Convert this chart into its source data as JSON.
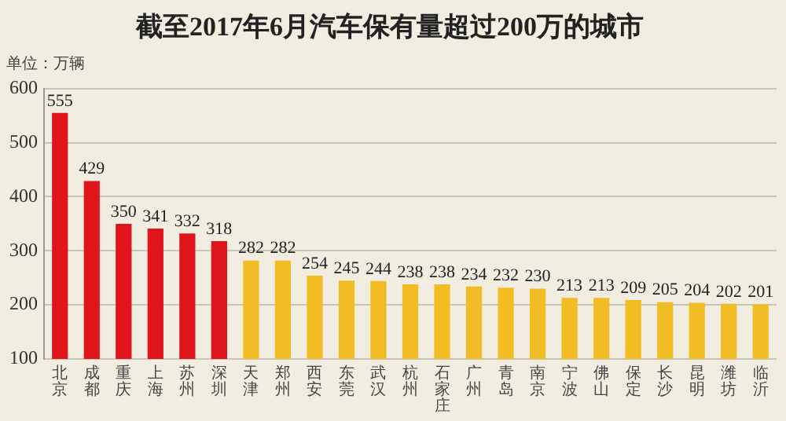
{
  "chart_data": {
    "type": "bar",
    "title": "截至2017年6月汽车保有量超过200万的城市",
    "annotations": [
      "单位：万辆"
    ],
    "categories": [
      "北京",
      "成都",
      "重庆",
      "上海",
      "苏州",
      "深圳",
      "天津",
      "郑州",
      "西安",
      "东莞",
      "武汉",
      "杭州",
      "石家庄",
      "广州",
      "青岛",
      "南京",
      "宁波",
      "佛山",
      "保定",
      "长沙",
      "昆明",
      "潍坊",
      "临沂"
    ],
    "values": [
      555,
      429,
      350,
      341,
      332,
      318,
      282,
      282,
      254,
      245,
      244,
      238,
      238,
      234,
      232,
      230,
      213,
      213,
      209,
      205,
      204,
      202,
      201
    ],
    "colors": [
      "#e0141b",
      "#e0141b",
      "#e0141b",
      "#e0141b",
      "#e0141b",
      "#e0141b",
      "#f2bd24",
      "#f2bd24",
      "#f2bd24",
      "#f2bd24",
      "#f2bd24",
      "#f2bd24",
      "#f2bd24",
      "#f2bd24",
      "#f2bd24",
      "#f2bd24",
      "#f2bd24",
      "#f2bd24",
      "#f2bd24",
      "#f2bd24",
      "#f2bd24",
      "#f2bd24",
      "#f2bd24"
    ],
    "ylim": [
      100,
      600
    ],
    "yticks": [
      100,
      200,
      300,
      400,
      500,
      600
    ],
    "grid": "y",
    "data_labels": true
  }
}
